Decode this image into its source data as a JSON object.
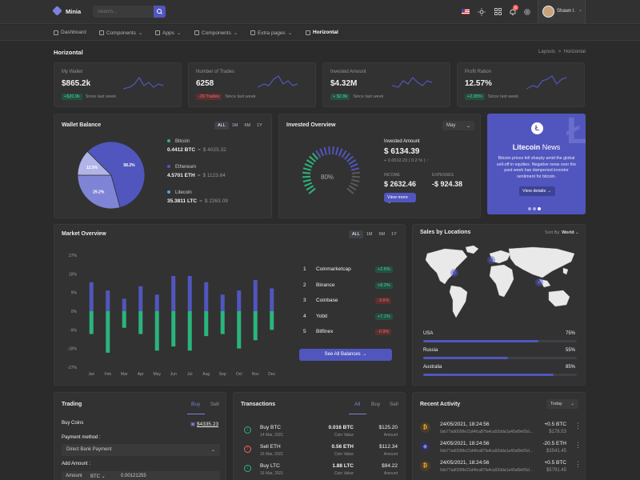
{
  "brand": "Minia",
  "search": {
    "placeholder": "Search..."
  },
  "user": {
    "name": "Shawn l.",
    "notifications": "5"
  },
  "nav": [
    "Dashboard",
    "Components",
    "Apps",
    "Components",
    "Extra pages",
    "Horizontal"
  ],
  "page": {
    "title": "Horizontal",
    "crumb1": "Layouts",
    "crumb_sep": ">",
    "crumb2": "Horizontal"
  },
  "stats": [
    {
      "label": "My Wallet",
      "value": "$865.2k",
      "badge": "+$20.9k",
      "badge_type": "g",
      "since": "Since last week"
    },
    {
      "label": "Number of Trades",
      "value": "6258",
      "badge": "-29 Trades",
      "badge_type": "r",
      "since": "Since last week"
    },
    {
      "label": "Invested Amount",
      "value": "$4.32M",
      "badge": "+ $2.8k",
      "badge_type": "g",
      "since": "Since last week"
    },
    {
      "label": "Profit Ration",
      "value": "12.57%",
      "badge": "+2.95%",
      "badge_type": "g",
      "since": "Since last week"
    }
  ],
  "wallet": {
    "title": "Wallet Balance",
    "filters": [
      "ALL",
      "1M",
      "6M",
      "1Y"
    ],
    "coins": [
      {
        "name": "Bitcoin",
        "amount": "0.4412 BTC",
        "sep": "=",
        "usd": "$ 4025.32",
        "color": "#2ab57d"
      },
      {
        "name": "Ethereum",
        "amount": "4.5701 ETH",
        "sep": "=",
        "usd": "$ 1123.64",
        "color": "#5156be"
      },
      {
        "name": "Litecoin",
        "amount": "35.3811 LTC",
        "sep": "=",
        "usd": "$ 2263.09",
        "color": "#4ba6ef"
      }
    ],
    "pie": [
      {
        "label": "58.2%",
        "value": 58.2,
        "color": "#5156be"
      },
      {
        "label": "29.2%",
        "value": 29.2,
        "color": "#7f84d6"
      },
      {
        "label": "12.5%",
        "value": 12.5,
        "color": "#b1b4e8"
      }
    ]
  },
  "invested": {
    "title": "Invested Overview",
    "month": "May",
    "gauge": "80%",
    "gauge_value": 80,
    "amount_label": "Invested Amount",
    "amount": "$ 6134.39",
    "change": "+ 0.0012.23 ( 0.2 % )",
    "income_label": "INCOME",
    "income": "$ 2632.46",
    "expenses_label": "EXPENSES",
    "expenses": "-$ 924.38",
    "button": "View more"
  },
  "news": {
    "title_strong": "Litecoin",
    "title_rest": " News",
    "text": "Bitcoin prices fell sharply amid the global sell-off in equities. Negative news over the past week has dampened investor sentiment for bitcoin.",
    "button": "View details"
  },
  "market": {
    "title": "Market Overview",
    "filters": [
      "ALL",
      "1M",
      "6M",
      "1Y"
    ],
    "ranks": [
      {
        "n": "1",
        "name": "Coinmarketcap",
        "change": "+2.5%",
        "type": "g"
      },
      {
        "n": "2",
        "name": "Binance",
        "change": "+8.3%",
        "type": "g"
      },
      {
        "n": "3",
        "name": "Coinbase",
        "change": "-3.6%",
        "type": "r"
      },
      {
        "n": "4",
        "name": "Yobit",
        "change": "+7.1%",
        "type": "g"
      },
      {
        "n": "5",
        "name": "Bitfinex",
        "change": "-0.9%",
        "type": "r"
      }
    ],
    "button": "See All Balances"
  },
  "chart_data": {
    "type": "bar",
    "categories": [
      "Jan",
      "Feb",
      "Mar",
      "Apr",
      "May",
      "Jun",
      "Jul",
      "Aug",
      "Sep",
      "Oct",
      "Nov",
      "Dec"
    ],
    "series": [
      {
        "values": [
          14,
          10,
          6,
          12,
          8,
          17,
          17,
          14,
          8,
          10,
          15,
          11
        ]
      },
      {
        "values": [
          -11,
          -20,
          -8,
          -11,
          -19,
          -17,
          -19,
          -12,
          -11,
          -18,
          -14,
          -9
        ]
      }
    ],
    "yticks": [
      "27%",
      "18%",
      "9%",
      "0%",
      "-9%",
      "-18%",
      "-27%"
    ],
    "ylim": [
      -27,
      27
    ],
    "colors": [
      "#5156be",
      "#2ab57d"
    ]
  },
  "locations": {
    "title": "Sales by Locations",
    "sort_label": "Sort By:",
    "sort_value": "World",
    "items": [
      {
        "name": "USA",
        "pct": "75%",
        "value": 75
      },
      {
        "name": "Russia",
        "pct": "55%",
        "value": 55
      },
      {
        "name": "Australia",
        "pct": "85%",
        "value": 85
      }
    ]
  },
  "trading": {
    "title": "Trading",
    "tab_buy": "Buy",
    "tab_sell": "Sell",
    "buy_coins": "Buy Coins",
    "balance": "$4335.23",
    "payment_label": "Payment method :",
    "payment_value": "Direct Bank Payment",
    "add_amount": "Add Amount :",
    "amount_prefix": "Amount",
    "coin": "BTC",
    "amount_value": "0.00121255"
  },
  "transactions": {
    "title": "Transactions",
    "tabs": [
      "All",
      "Buy",
      "Sell"
    ],
    "rows": [
      {
        "kind": "in",
        "title": "Buy BTC",
        "date": "14 Mar, 2021",
        "qty": "0.016 BTC",
        "qty_label": "Coin Value",
        "usd": "$125.20",
        "usd_label": "Amount"
      },
      {
        "kind": "out",
        "title": "Sell ETH",
        "date": "15 Mar, 2021",
        "qty": "0.56 ETH",
        "qty_label": "Coin Value",
        "usd": "$112.34",
        "usd_label": "Amount"
      },
      {
        "kind": "in",
        "title": "Buy LTC",
        "date": "16 Mar, 2021",
        "qty": "1.88 LTC",
        "qty_label": "Coin Value",
        "usd": "$94.22",
        "usd_label": "Amount"
      }
    ]
  },
  "activity": {
    "title": "Recent Activity",
    "filter": "Today",
    "rows": [
      {
        "coin": "btc",
        "time": "24/05/2021, 18:24:56",
        "hash": "0xb77ad0099e21d4fca87fa4ca92dda1a40af9e05d205",
        "amt": "+0.5 BTC",
        "usd": "$178.53"
      },
      {
        "coin": "eth",
        "time": "24/05/2021, 18:24:56",
        "hash": "0xb77ad0099e21d4fca87fa4ca92dda1a40af9e05d205",
        "amt": "-20.5 ETH",
        "usd": "$3541.45"
      },
      {
        "coin": "btc",
        "time": "24/05/2021, 18:24:56",
        "hash": "0xb77ad0099e21d4fca87fa4ca92dda1a40af9e05d205",
        "amt": "+0.5 BTC",
        "usd": "$5791.45"
      }
    ]
  }
}
